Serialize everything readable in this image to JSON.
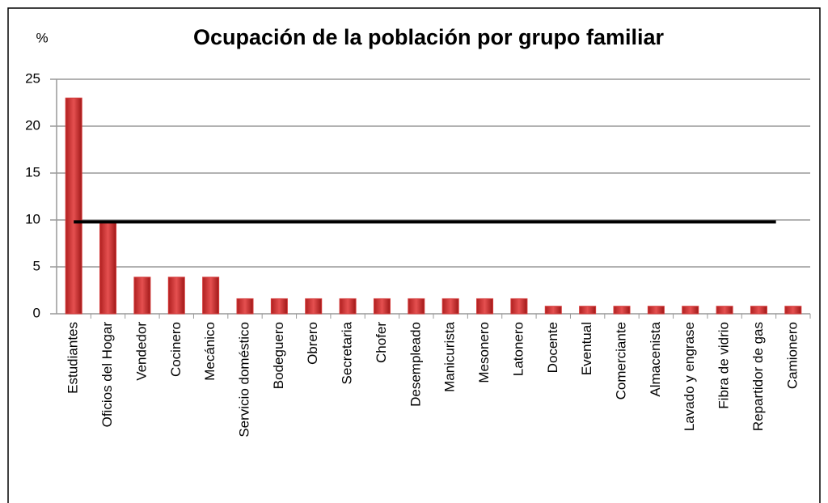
{
  "chart_data": {
    "type": "bar",
    "title": "Ocupación de la población por grupo familiar",
    "y_unit": "%",
    "categories": [
      "Estudiantes",
      "Oficios del Hogar",
      "Vendedor",
      "Cocinero",
      "Mecánico",
      "Servicio doméstico",
      "Bodeguero",
      "Obrero",
      "Secretaria",
      "Chofer",
      "Desempleado",
      "Manicurista",
      "Mesonero",
      "Latonero",
      "Docente",
      "Eventual",
      "Comerciante",
      "Almacenista",
      "Lavado y engrase",
      "Fibra de vidrio",
      "Repartidor de gas",
      "Camionero"
    ],
    "values": [
      23,
      9.8,
      3.9,
      3.9,
      3.9,
      1.6,
      1.6,
      1.6,
      1.6,
      1.6,
      1.6,
      1.6,
      1.6,
      1.6,
      0.8,
      0.8,
      0.8,
      0.8,
      0.8,
      0.8,
      0.8,
      0.8
    ],
    "color": "#d43a3a",
    "reference_line": 9.8,
    "reference_color": "#000000",
    "ylim": [
      0,
      25
    ],
    "yticks": [
      0,
      5,
      10,
      15,
      20,
      25
    ],
    "grid": true
  }
}
